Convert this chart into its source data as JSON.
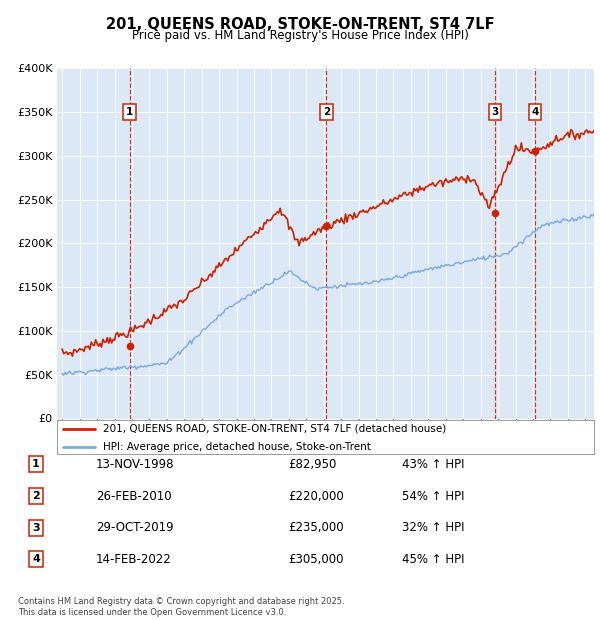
{
  "title": "201, QUEENS ROAD, STOKE-ON-TRENT, ST4 7LF",
  "subtitle": "Price paid vs. HM Land Registry's House Price Index (HPI)",
  "legend_label_red": "201, QUEENS ROAD, STOKE-ON-TRENT, ST4 7LF (detached house)",
  "legend_label_blue": "HPI: Average price, detached house, Stoke-on-Trent",
  "footer": "Contains HM Land Registry data © Crown copyright and database right 2025.\nThis data is licensed under the Open Government Licence v3.0.",
  "transactions": [
    {
      "num": 1,
      "date": "13-NOV-1998",
      "price": 82950,
      "pct": "43% ↑ HPI",
      "year": 1998.87
    },
    {
      "num": 2,
      "date": "26-FEB-2010",
      "price": 220000,
      "pct": "54% ↑ HPI",
      "year": 2010.15
    },
    {
      "num": 3,
      "date": "29-OCT-2019",
      "price": 235000,
      "pct": "32% ↑ HPI",
      "year": 2019.83
    },
    {
      "num": 4,
      "date": "14-FEB-2022",
      "price": 305000,
      "pct": "45% ↑ HPI",
      "year": 2022.12
    }
  ],
  "ylim": [
    0,
    400000
  ],
  "xlim": [
    1994.7,
    2025.5
  ],
  "plot_bg": "#dce8f5",
  "red_color": "#cc2200",
  "blue_color": "#7aaadd",
  "vline_color": "#cc2200"
}
